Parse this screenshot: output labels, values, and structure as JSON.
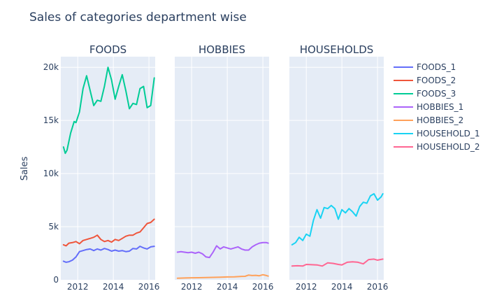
{
  "chart_data": {
    "type": "line",
    "title": "Sales of categories department wise",
    "ylabel": "Sales",
    "xlabel": "",
    "ylim": [
      0,
      21000
    ],
    "xlim": [
      2011.05,
      2016.35
    ],
    "x_ticks": [
      2012,
      2014,
      2016
    ],
    "x_tick_labels": [
      "2012",
      "2014",
      "2016"
    ],
    "y_ticks": [
      0,
      5000,
      10000,
      15000,
      20000
    ],
    "y_tick_labels": [
      "0",
      "5k",
      "10k",
      "15k",
      "20k"
    ],
    "grid": true,
    "legend_position": "right",
    "colors": {
      "FOODS_1": "#636efa",
      "FOODS_2": "#ef553b",
      "FOODS_3": "#00cc96",
      "HOBBIES_1": "#ab63fa",
      "HOBBIES_2": "#ffa15a",
      "HOUSEHOLD_1": "#19d3f3",
      "HOUSEHOLD_2": "#ff6692"
    },
    "facets": [
      {
        "title": "FOODS",
        "series": [
          {
            "name": "FOODS_1",
            "x": [
              2011.2,
              2011.35,
              2011.5,
              2011.7,
              2011.9,
              2012.1,
              2012.3,
              2012.5,
              2012.7,
              2012.9,
              2013.1,
              2013.3,
              2013.5,
              2013.7,
              2013.9,
              2014.1,
              2014.3,
              2014.5,
              2014.7,
              2014.9,
              2015.1,
              2015.3,
              2015.5,
              2015.7,
              2015.9,
              2016.1,
              2016.3
            ],
            "y": [
              1750,
              1650,
              1700,
              1850,
              2150,
              2650,
              2750,
              2850,
              2900,
              2750,
              2900,
              2800,
              2950,
              2850,
              2700,
              2800,
              2700,
              2750,
              2650,
              2700,
              2950,
              2900,
              3150,
              3000,
              2900,
              3100,
              3150
            ]
          },
          {
            "name": "FOODS_2",
            "x": [
              2011.2,
              2011.35,
              2011.5,
              2011.7,
              2011.9,
              2012.1,
              2012.3,
              2012.5,
              2012.7,
              2012.9,
              2013.1,
              2013.3,
              2013.5,
              2013.7,
              2013.9,
              2014.1,
              2014.3,
              2014.5,
              2014.7,
              2014.9,
              2015.1,
              2015.3,
              2015.5,
              2015.7,
              2015.9,
              2016.1,
              2016.3
            ],
            "y": [
              3300,
              3200,
              3450,
              3500,
              3600,
              3400,
              3700,
              3800,
              3900,
              4000,
              4200,
              3800,
              3600,
              3700,
              3550,
              3800,
              3700,
              3900,
              4100,
              4200,
              4200,
              4400,
              4500,
              4900,
              5300,
              5400,
              5700
            ]
          },
          {
            "name": "FOODS_3",
            "x": [
              2011.2,
              2011.3,
              2011.4,
              2011.6,
              2011.8,
              2011.9,
              2012.1,
              2012.3,
              2012.5,
              2012.7,
              2012.9,
              2013.1,
              2013.3,
              2013.5,
              2013.7,
              2013.9,
              2014.1,
              2014.3,
              2014.5,
              2014.7,
              2014.9,
              2015.1,
              2015.3,
              2015.5,
              2015.7,
              2015.9,
              2016.1,
              2016.3
            ],
            "y": [
              12500,
              11900,
              12200,
              13800,
              14900,
              14800,
              15800,
              18000,
              19200,
              17800,
              16400,
              16900,
              16800,
              18200,
              20000,
              18800,
              17000,
              18200,
              19300,
              17800,
              16100,
              16600,
              16500,
              18000,
              18200,
              16200,
              16400,
              19000
            ]
          }
        ]
      },
      {
        "title": "HOBBIES",
        "series": [
          {
            "name": "HOBBIES_1",
            "x": [
              2011.2,
              2011.4,
              2011.6,
              2011.8,
              2012.0,
              2012.2,
              2012.4,
              2012.6,
              2012.8,
              2013.0,
              2013.2,
              2013.4,
              2013.6,
              2013.8,
              2014.0,
              2014.2,
              2014.4,
              2014.6,
              2014.8,
              2015.0,
              2015.2,
              2015.4,
              2015.6,
              2015.8,
              2016.0,
              2016.2,
              2016.3
            ],
            "y": [
              2600,
              2650,
              2600,
              2550,
              2600,
              2500,
              2600,
              2450,
              2150,
              2100,
              2600,
              3200,
              2900,
              3100,
              3000,
              2900,
              3000,
              3100,
              2900,
              2800,
              2800,
              3100,
              3300,
              3450,
              3500,
              3500,
              3450
            ]
          },
          {
            "name": "HOBBIES_2",
            "x": [
              2011.2,
              2011.6,
              2012.0,
              2012.4,
              2012.8,
              2013.2,
              2013.6,
              2014.0,
              2014.4,
              2014.8,
              2015.0,
              2015.2,
              2015.4,
              2015.6,
              2015.8,
              2016.0,
              2016.2,
              2016.3
            ],
            "y": [
              150,
              170,
              190,
              200,
              210,
              230,
              250,
              270,
              280,
              320,
              330,
              450,
              400,
              420,
              380,
              480,
              400,
              350
            ]
          }
        ]
      },
      {
        "title": "HOUSEHOLDS",
        "series": [
          {
            "name": "HOUSEHOLD_1",
            "x": [
              2011.2,
              2011.4,
              2011.6,
              2011.8,
              2012.0,
              2012.2,
              2012.4,
              2012.6,
              2012.8,
              2013.0,
              2013.2,
              2013.4,
              2013.6,
              2013.8,
              2014.0,
              2014.2,
              2014.4,
              2014.6,
              2014.8,
              2015.0,
              2015.2,
              2015.4,
              2015.6,
              2015.8,
              2016.0,
              2016.2,
              2016.3
            ],
            "y": [
              3300,
              3500,
              4000,
              3700,
              4300,
              4100,
              5600,
              6600,
              5800,
              6800,
              6700,
              7000,
              6700,
              5700,
              6600,
              6300,
              6700,
              6400,
              6000,
              6900,
              7300,
              7200,
              7900,
              8100,
              7500,
              7800,
              8100
            ]
          },
          {
            "name": "HOUSEHOLD_2",
            "x": [
              2011.2,
              2011.5,
              2011.8,
              2012.0,
              2012.3,
              2012.6,
              2012.9,
              2013.2,
              2013.5,
              2013.8,
              2014.0,
              2014.3,
              2014.6,
              2014.9,
              2015.2,
              2015.5,
              2015.8,
              2016.0,
              2016.3
            ],
            "y": [
              1300,
              1320,
              1300,
              1450,
              1420,
              1400,
              1300,
              1600,
              1550,
              1450,
              1400,
              1650,
              1700,
              1650,
              1500,
              1900,
              1950,
              1850,
              1950
            ]
          }
        ]
      }
    ]
  }
}
